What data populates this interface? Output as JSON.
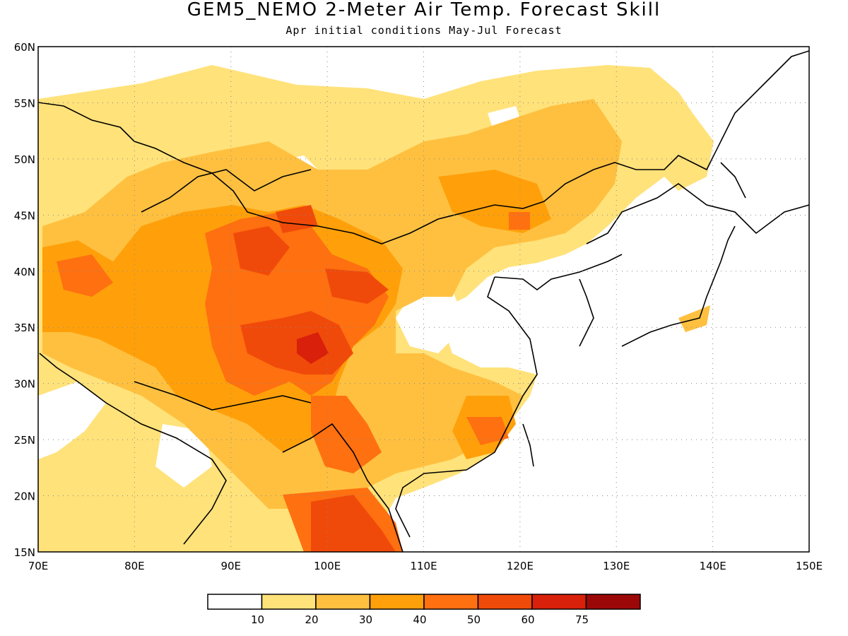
{
  "title": "GEM5_NEMO 2-Meter Air Temp. Forecast Skill",
  "subtitle": "Apr initial conditions  May-Jul Forecast",
  "map": {
    "lon_range": [
      70,
      150
    ],
    "lat_range": [
      15,
      60
    ],
    "lon_ticks": [
      "70E",
      "80E",
      "90E",
      "100E",
      "110E",
      "120E",
      "130E",
      "140E",
      "150E"
    ],
    "lat_ticks": [
      "60N",
      "55N",
      "50N",
      "45N",
      "40N",
      "35N",
      "30N",
      "25N",
      "20N",
      "15N"
    ],
    "gridlines": "dotted"
  },
  "colorbar": {
    "labels": [
      "10",
      "20",
      "30",
      "40",
      "50",
      "60",
      "75"
    ],
    "colors": [
      "#ffffff",
      "#ffe27a",
      "#ffc040",
      "#ffa00a",
      "#ff7010",
      "#f04a0a",
      "#d8200a",
      "#9c0808"
    ]
  }
}
